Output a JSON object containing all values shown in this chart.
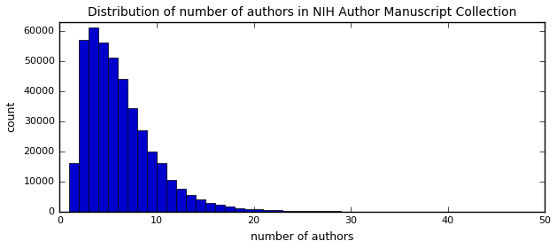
{
  "title": "Distribution of number of authors in NIH Author Manuscript Collection",
  "xlabel": "number of authors",
  "ylabel": "count",
  "xlim": [
    0,
    50
  ],
  "ylim": [
    0,
    63000
  ],
  "bar_color": "#0000cc",
  "edge_color": "#000000",
  "bar_heights": [
    16000,
    57000,
    61000,
    56000,
    51000,
    44000,
    34500,
    27000,
    20000,
    16000,
    10500,
    7500,
    5500,
    4000,
    3000,
    2200,
    1700,
    1200,
    900,
    700,
    500,
    400,
    300,
    250,
    200,
    160,
    130,
    110,
    90,
    75,
    60,
    55,
    50,
    45,
    40,
    35,
    30,
    28,
    25,
    22,
    20,
    18,
    17,
    15,
    14,
    13,
    12,
    11,
    10
  ],
  "yticks": [
    0,
    10000,
    20000,
    30000,
    40000,
    50000,
    60000
  ],
  "xticks": [
    0,
    10,
    20,
    30,
    40,
    50
  ],
  "title_fontsize": 10,
  "axis_fontsize": 9,
  "tick_fontsize": 8,
  "figsize": [
    6.29,
    2.81
  ],
  "dpi": 100
}
